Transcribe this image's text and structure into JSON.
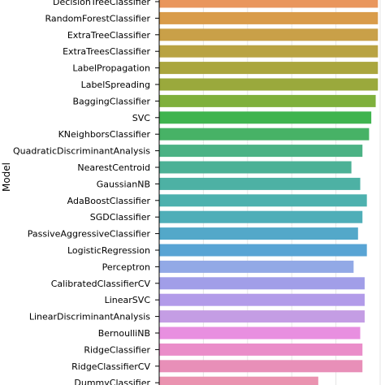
{
  "chart_data": {
    "type": "bar",
    "orientation": "horizontal",
    "title": "",
    "xlabel": "",
    "ylabel": "Model",
    "xlim": [
      0,
      1.0
    ],
    "grid": "vertical",
    "categories": [
      "DecisionTreeClassifier",
      "RandomForestClassifier",
      "ExtraTreeClassifier",
      "ExtraTreesClassifier",
      "LabelPropagation",
      "LabelSpreading",
      "BaggingClassifier",
      "SVC",
      "KNeighborsClassifier",
      "QuadraticDiscriminantAnalysis",
      "NearestCentroid",
      "GaussianNB",
      "AdaBoostClassifier",
      "SGDClassifier",
      "PassiveAggressiveClassifier",
      "LogisticRegression",
      "Perceptron",
      "CalibratedClassifierCV",
      "LinearSVC",
      "LinearDiscriminantAnalysis",
      "BernoulliNB",
      "RidgeClassifier",
      "RidgeClassifierCV",
      "DummyClassifier"
    ],
    "values": [
      0.99,
      0.99,
      0.99,
      0.99,
      0.99,
      0.99,
      0.98,
      0.96,
      0.95,
      0.92,
      0.87,
      0.91,
      0.94,
      0.92,
      0.9,
      0.94,
      0.88,
      0.93,
      0.93,
      0.93,
      0.91,
      0.92,
      0.92,
      0.72
    ],
    "colors": [
      "#e9965d",
      "#d99c4a",
      "#c9a048",
      "#b9a343",
      "#aaa63e",
      "#9aa93c",
      "#7fb03c",
      "#3fb44f",
      "#47b266",
      "#4bb284",
      "#4cb196",
      "#4db1a4",
      "#4db1ae",
      "#4faeb8",
      "#53a8c9",
      "#58a4d4",
      "#92a9e6",
      "#a19ee8",
      "#b29be9",
      "#c49de4",
      "#e88fe0",
      "#ea8dc9",
      "#e88fb8",
      "#ea93b0"
    ]
  }
}
